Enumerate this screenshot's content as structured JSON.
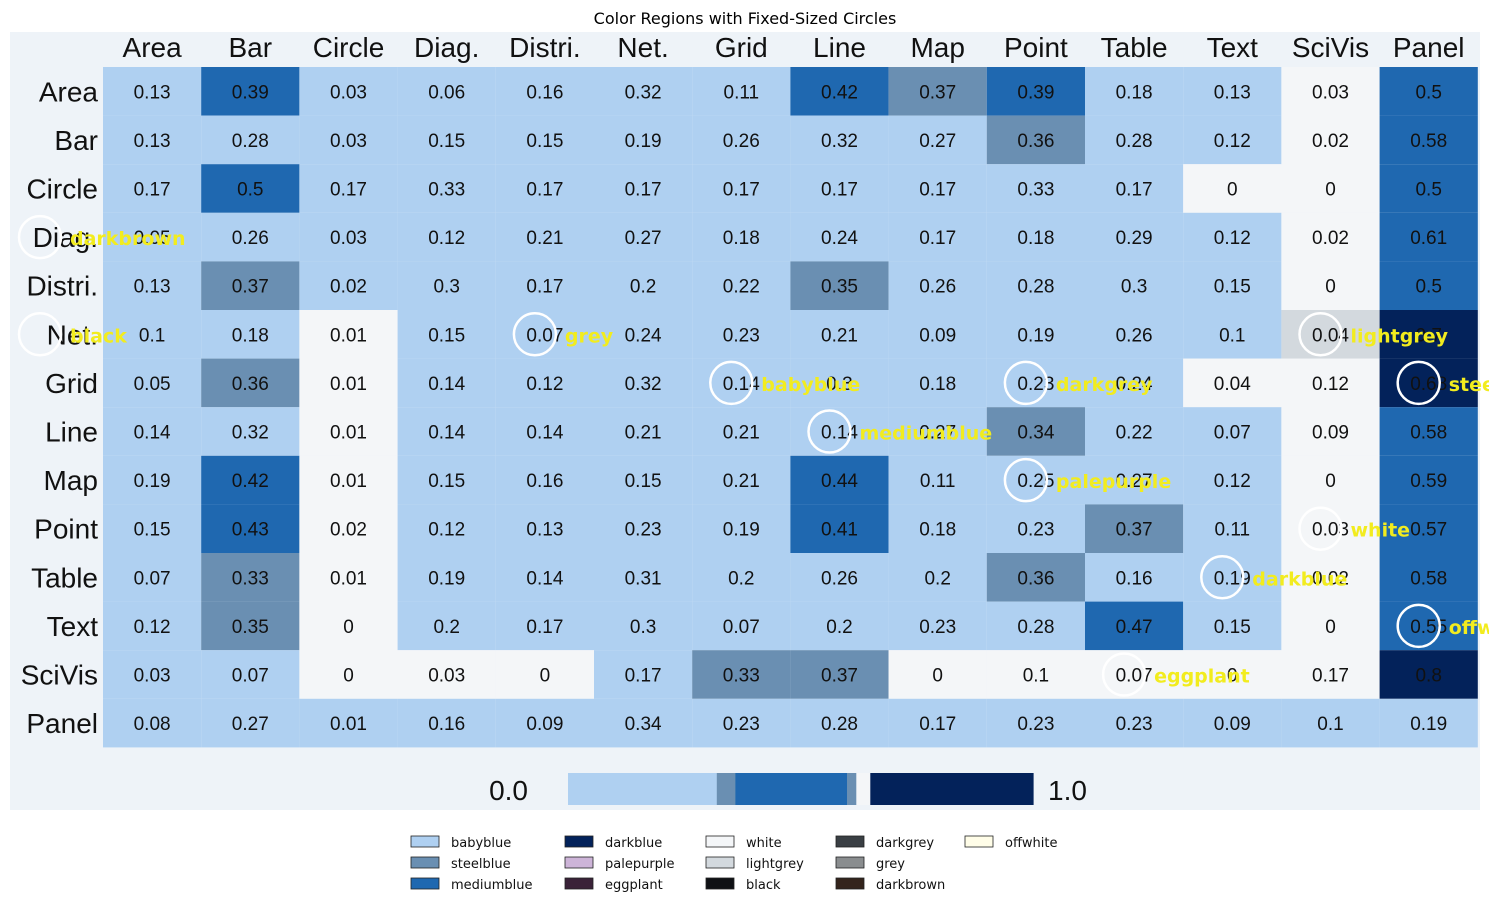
{
  "chart_data": {
    "type": "heatmap",
    "title": "Color Regions with Fixed-Sized Circles",
    "columns": [
      "Area",
      "Bar",
      "Circle",
      "Diag.",
      "Distri.",
      "Net.",
      "Grid",
      "Line",
      "Map",
      "Point",
      "Table",
      "Text",
      "SciVis",
      "Panel"
    ],
    "rows": [
      "Area",
      "Bar",
      "Circle",
      "Diag.",
      "Distri.",
      "Net.",
      "Grid",
      "Line",
      "Map",
      "Point",
      "Table",
      "Text",
      "SciVis",
      "Panel"
    ],
    "values": [
      [
        "0.13",
        "0.39",
        "0.03",
        "0.06",
        "0.16",
        "0.32",
        "0.11",
        "0.42",
        "0.37",
        "0.39",
        "0.18",
        "0.13",
        "0.03",
        "0.5"
      ],
      [
        "0.13",
        "0.28",
        "0.03",
        "0.15",
        "0.15",
        "0.19",
        "0.26",
        "0.32",
        "0.27",
        "0.36",
        "0.28",
        "0.12",
        "0.02",
        "0.58"
      ],
      [
        "0.17",
        "0.5",
        "0.17",
        "0.33",
        "0.17",
        "0.17",
        "0.17",
        "0.17",
        "0.17",
        "0.33",
        "0.17",
        "0",
        "0",
        "0.5"
      ],
      [
        "0.05",
        "0.26",
        "0.03",
        "0.12",
        "0.21",
        "0.27",
        "0.18",
        "0.24",
        "0.17",
        "0.18",
        "0.29",
        "0.12",
        "0.02",
        "0.61"
      ],
      [
        "0.13",
        "0.37",
        "0.02",
        "0.3",
        "0.17",
        "0.2",
        "0.22",
        "0.35",
        "0.26",
        "0.28",
        "0.3",
        "0.15",
        "0",
        "0.5"
      ],
      [
        "0.1",
        "0.18",
        "0.01",
        "0.15",
        "0.07",
        "0.24",
        "0.23",
        "0.21",
        "0.09",
        "0.19",
        "0.26",
        "0.1",
        "0.04",
        "0.7"
      ],
      [
        "0.05",
        "0.36",
        "0.01",
        "0.14",
        "0.12",
        "0.32",
        "0.14",
        "0.3",
        "0.18",
        "0.23",
        "0.24",
        "0.04",
        "0.12",
        "0.68"
      ],
      [
        "0.14",
        "0.32",
        "0.01",
        "0.14",
        "0.14",
        "0.21",
        "0.21",
        "0.14",
        "0.27",
        "0.34",
        "0.22",
        "0.07",
        "0.09",
        "0.58"
      ],
      [
        "0.19",
        "0.42",
        "0.01",
        "0.15",
        "0.16",
        "0.15",
        "0.21",
        "0.44",
        "0.11",
        "0.25",
        "0.27",
        "0.12",
        "0",
        "0.59"
      ],
      [
        "0.15",
        "0.43",
        "0.02",
        "0.12",
        "0.13",
        "0.23",
        "0.19",
        "0.41",
        "0.18",
        "0.23",
        "0.37",
        "0.11",
        "0.03",
        "0.57"
      ],
      [
        "0.07",
        "0.33",
        "0.01",
        "0.19",
        "0.14",
        "0.31",
        "0.2",
        "0.26",
        "0.2",
        "0.36",
        "0.16",
        "0.19",
        "0.02",
        "0.58"
      ],
      [
        "0.12",
        "0.35",
        "0",
        "0.2",
        "0.17",
        "0.3",
        "0.07",
        "0.2",
        "0.23",
        "0.28",
        "0.47",
        "0.15",
        "0",
        "0.55"
      ],
      [
        "0.03",
        "0.07",
        "0",
        "0.03",
        "0",
        "0.17",
        "0.33",
        "0.37",
        "0",
        "0.1",
        "0.07",
        "0",
        "0.17",
        "0.8"
      ],
      [
        "0.08",
        "0.27",
        "0.01",
        "0.16",
        "0.09",
        "0.34",
        "0.23",
        "0.28",
        "0.17",
        "0.23",
        "0.23",
        "0.09",
        "0.1",
        "0.19"
      ]
    ],
    "cell_colors": [
      [
        "babyblue",
        "mediumblue",
        "babyblue",
        "babyblue",
        "babyblue",
        "babyblue",
        "babyblue",
        "mediumblue",
        "steelblue",
        "mediumblue",
        "babyblue",
        "babyblue",
        "white",
        "mediumblue"
      ],
      [
        "babyblue",
        "babyblue",
        "babyblue",
        "babyblue",
        "babyblue",
        "babyblue",
        "babyblue",
        "babyblue",
        "babyblue",
        "steelblue",
        "babyblue",
        "babyblue",
        "white",
        "mediumblue"
      ],
      [
        "babyblue",
        "mediumblue",
        "babyblue",
        "babyblue",
        "babyblue",
        "babyblue",
        "babyblue",
        "babyblue",
        "babyblue",
        "babyblue",
        "babyblue",
        "white",
        "white",
        "mediumblue"
      ],
      [
        "babyblue",
        "babyblue",
        "babyblue",
        "babyblue",
        "babyblue",
        "babyblue",
        "babyblue",
        "babyblue",
        "babyblue",
        "babyblue",
        "babyblue",
        "babyblue",
        "white",
        "mediumblue"
      ],
      [
        "babyblue",
        "steelblue",
        "babyblue",
        "babyblue",
        "babyblue",
        "babyblue",
        "babyblue",
        "steelblue",
        "babyblue",
        "babyblue",
        "babyblue",
        "babyblue",
        "white",
        "mediumblue"
      ],
      [
        "babyblue",
        "babyblue",
        "white",
        "babyblue",
        "babyblue",
        "babyblue",
        "babyblue",
        "babyblue",
        "babyblue",
        "babyblue",
        "babyblue",
        "babyblue",
        "lightgrey",
        "darkblue"
      ],
      [
        "babyblue",
        "steelblue",
        "white",
        "babyblue",
        "babyblue",
        "babyblue",
        "babyblue",
        "babyblue",
        "babyblue",
        "babyblue",
        "babyblue",
        "white",
        "white",
        "darkblue"
      ],
      [
        "babyblue",
        "babyblue",
        "white",
        "babyblue",
        "babyblue",
        "babyblue",
        "babyblue",
        "babyblue",
        "babyblue",
        "steelblue",
        "babyblue",
        "babyblue",
        "white",
        "mediumblue"
      ],
      [
        "babyblue",
        "mediumblue",
        "white",
        "babyblue",
        "babyblue",
        "babyblue",
        "babyblue",
        "mediumblue",
        "babyblue",
        "babyblue",
        "babyblue",
        "babyblue",
        "white",
        "mediumblue"
      ],
      [
        "babyblue",
        "mediumblue",
        "white",
        "babyblue",
        "babyblue",
        "babyblue",
        "babyblue",
        "mediumblue",
        "babyblue",
        "babyblue",
        "steelblue",
        "babyblue",
        "white",
        "mediumblue"
      ],
      [
        "babyblue",
        "steelblue",
        "white",
        "babyblue",
        "babyblue",
        "babyblue",
        "babyblue",
        "babyblue",
        "babyblue",
        "steelblue",
        "babyblue",
        "babyblue",
        "white",
        "mediumblue"
      ],
      [
        "babyblue",
        "steelblue",
        "white",
        "babyblue",
        "babyblue",
        "babyblue",
        "babyblue",
        "babyblue",
        "babyblue",
        "babyblue",
        "mediumblue",
        "babyblue",
        "white",
        "mediumblue"
      ],
      [
        "babyblue",
        "babyblue",
        "white",
        "white",
        "white",
        "babyblue",
        "steelblue",
        "steelblue",
        "white",
        "white",
        "white",
        "white",
        "white",
        "darkblue"
      ],
      [
        "babyblue",
        "babyblue",
        "babyblue",
        "babyblue",
        "babyblue",
        "babyblue",
        "babyblue",
        "babyblue",
        "babyblue",
        "babyblue",
        "babyblue",
        "babyblue",
        "babyblue",
        "babyblue"
      ]
    ],
    "colorbar": {
      "min_label": "0.0",
      "max_label": "1.0",
      "segments": [
        {
          "color": "babyblue",
          "from": 0.0,
          "to": 0.32
        },
        {
          "color": "steelblue",
          "from": 0.32,
          "to": 0.36
        },
        {
          "color": "mediumblue",
          "from": 0.36,
          "to": 0.6
        },
        {
          "color": "steelblue",
          "from": 0.6,
          "to": 0.62
        },
        {
          "color": "white",
          "from": 0.62,
          "to": 0.65
        },
        {
          "color": "darkblue",
          "from": 0.65,
          "to": 1.0
        }
      ]
    },
    "circles": [
      {
        "label": "darkbrown",
        "row": 3,
        "col": 0
      },
      {
        "label": "black",
        "row": 5,
        "col": 0
      },
      {
        "label": "grey",
        "row": 5,
        "col": 4
      },
      {
        "label": "babyblue",
        "row": 6,
        "col": 6
      },
      {
        "label": "mediumblue",
        "row": 7,
        "col": 7
      },
      {
        "label": "darkgrey",
        "row": 6,
        "col": 9
      },
      {
        "label": "palepurple",
        "row": 8,
        "col": 9
      },
      {
        "label": "lightgrey",
        "row": 5,
        "col": 12
      },
      {
        "label": "steelblue",
        "row": 6,
        "col": 13
      },
      {
        "label": "white",
        "row": 9,
        "col": 12
      },
      {
        "label": "darkblue",
        "row": 10,
        "col": 11
      },
      {
        "label": "offwhite",
        "row": 11,
        "col": 13
      },
      {
        "label": "eggplant",
        "row": 12,
        "col": 10
      }
    ],
    "legend": {
      "placement": "bottom-center",
      "entries": [
        {
          "name": "babyblue",
          "color": "#afd0f1"
        },
        {
          "name": "steelblue",
          "color": "#6a8fb2"
        },
        {
          "name": "mediumblue",
          "color": "#1f68b0"
        },
        {
          "name": "darkblue",
          "color": "#03225a"
        },
        {
          "name": "palepurple",
          "color": "#cdb4d8"
        },
        {
          "name": "eggplant",
          "color": "#3a2238"
        },
        {
          "name": "white",
          "color": "#f4f6f8"
        },
        {
          "name": "lightgrey",
          "color": "#d3d9de"
        },
        {
          "name": "black",
          "color": "#0f1114"
        },
        {
          "name": "darkgrey",
          "color": "#3a3f44"
        },
        {
          "name": "grey",
          "color": "#8a8d8f"
        },
        {
          "name": "darkbrown",
          "color": "#34241c"
        },
        {
          "name": "offwhite",
          "color": "#fffde8"
        }
      ]
    }
  }
}
